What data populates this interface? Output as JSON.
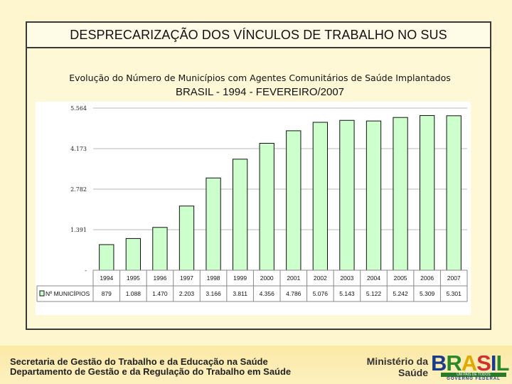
{
  "slide": {
    "title": "DESPRECARIZAÇÃO DOS VÍNCULOS DE TRABALHO NO SUS",
    "subtitle": "Evolução do Número de Municípios com Agentes Comunitários de Saúde Implantados",
    "chart_title": "BRASIL - 1994 - FEVEREIRO/2007"
  },
  "chart_data": {
    "type": "bar",
    "title": "BRASIL - 1994 - FEVEREIRO/2007",
    "categories": [
      "1994",
      "1995",
      "1996",
      "1997",
      "1998",
      "1999",
      "2000",
      "2001",
      "2002",
      "2003",
      "2004",
      "2005",
      "2006",
      "2007"
    ],
    "series": [
      {
        "name": "Nº MUNICÍPIOS",
        "values": [
          879,
          1088,
          1470,
          2203,
          3166,
          3811,
          4356,
          4786,
          5076,
          5143,
          5122,
          5242,
          5309,
          5301
        ],
        "value_labels": [
          "879",
          "1.088",
          "1.470",
          "2.203",
          "3.166",
          "3.811",
          "4.356",
          "4.786",
          "5.076",
          "5.143",
          "5.122",
          "5.242",
          "5.309",
          "5.301"
        ]
      }
    ],
    "ylim": [
      0,
      5564
    ],
    "yticks": [
      0,
      1391,
      2782,
      4173,
      5564
    ],
    "ytick_labels": [
      "-",
      "1.391",
      "2.782",
      "4.173",
      "5.564"
    ],
    "grid": true,
    "bar_color": "#ccffcc",
    "legend": "table-below"
  },
  "footer": {
    "line1": "Secretaria de Gestão do Trabalho e da Educação na Saúde",
    "line2": "Departamento de Gestão e da Regulação do Trabalho em Saúde",
    "ministry1": "Ministério da",
    "ministry2": "Saúde",
    "logo_word": "BRASIL",
    "logo_slogan": "UM PAÍS DE TODOS",
    "logo_gov": "GOVERNO FEDERAL"
  }
}
